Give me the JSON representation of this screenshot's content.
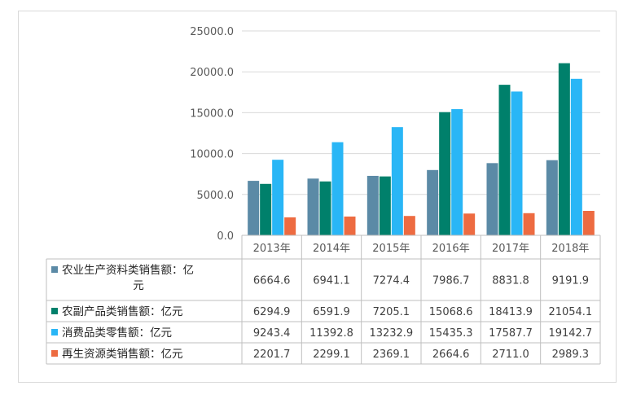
{
  "chart_data": {
    "type": "bar",
    "title": "",
    "xlabel": "",
    "ylabel": "",
    "categories": [
      "2013年",
      "2014年",
      "2015年",
      "2016年",
      "2017年",
      "2018年"
    ],
    "ylim": [
      0,
      25000
    ],
    "yticks": [
      "0.0",
      "5000.0",
      "10000.0",
      "15000.0",
      "20000.0",
      "25000.0"
    ],
    "grid": true,
    "legend": "data-table-left",
    "series": [
      {
        "name": "农业生产资料类销售额：亿元",
        "name_lines": [
          "农业生产资料类销售额：亿",
          "元"
        ],
        "color": "#5b8aa6",
        "values": [
          6664.6,
          6941.1,
          7274.4,
          7986.7,
          8831.8,
          9191.9
        ],
        "labels": [
          "6664.6",
          "6941.1",
          "7274.4",
          "7986.7",
          "8831.8",
          "9191.9"
        ]
      },
      {
        "name": "农副产品类销售额：亿元",
        "name_lines": [
          "农副产品类销售额：亿元"
        ],
        "color": "#00806b",
        "values": [
          6294.9,
          6591.9,
          7205.1,
          15068.6,
          18413.9,
          21054.1
        ],
        "labels": [
          "6294.9",
          "6591.9",
          "7205.1",
          "15068.6",
          "18413.9",
          "21054.1"
        ]
      },
      {
        "name": "消费品类零售额：亿元",
        "name_lines": [
          "消费品类零售额：亿元"
        ],
        "color": "#29b6f6",
        "values": [
          9243.4,
          11392.8,
          13232.9,
          15435.3,
          17587.7,
          19142.7
        ],
        "labels": [
          "9243.4",
          "11392.8",
          "13232.9",
          "15435.3",
          "17587.7",
          "19142.7"
        ]
      },
      {
        "name": "再生资源类销售额：亿元",
        "name_lines": [
          "再生资源类销售额：亿元"
        ],
        "color": "#ed6b41",
        "values": [
          2201.7,
          2299.1,
          2369.1,
          2664.6,
          2711.0,
          2989.3
        ],
        "labels": [
          "2201.7",
          "2299.1",
          "2369.1",
          "2664.6",
          "2711.0",
          "2989.3"
        ]
      }
    ]
  }
}
